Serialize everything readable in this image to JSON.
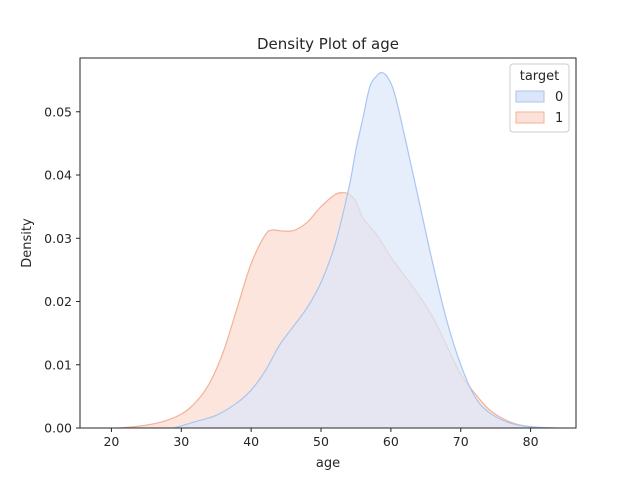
{
  "chart_data": {
    "type": "area",
    "title": "Density Plot of age",
    "xlabel": "age",
    "ylabel": "Density",
    "xlim": [
      15.5,
      86.5
    ],
    "ylim": [
      0,
      0.0585
    ],
    "xticks": [
      20,
      30,
      40,
      50,
      60,
      70,
      80
    ],
    "yticks": [
      0.0,
      0.01,
      0.02,
      0.03,
      0.04,
      0.05
    ],
    "ytick_labels": [
      "0.00",
      "0.01",
      "0.02",
      "0.03",
      "0.04",
      "0.05"
    ],
    "grid": false,
    "legend": {
      "title": "target",
      "placement": "top-right"
    },
    "series": [
      {
        "name": "0",
        "color": "#a8c6f0",
        "fill": "#dbe7f9",
        "x": [
          29,
          32,
          35,
          38,
          40,
          42,
          44,
          46,
          48,
          50,
          52,
          54,
          55,
          56,
          57,
          58,
          58.7,
          59.5,
          60.5,
          62,
          64,
          66,
          68,
          70,
          72,
          74,
          77,
          80,
          84
        ],
        "y": [
          0.0,
          0.001,
          0.002,
          0.004,
          0.006,
          0.009,
          0.013,
          0.016,
          0.019,
          0.023,
          0.029,
          0.038,
          0.044,
          0.049,
          0.054,
          0.0557,
          0.0562,
          0.0555,
          0.053,
          0.046,
          0.036,
          0.026,
          0.017,
          0.01,
          0.005,
          0.0025,
          0.0008,
          0.0002,
          0.0
        ]
      },
      {
        "name": "1",
        "color": "#f4b196",
        "fill": "#fbe2d8",
        "x": [
          21,
          24,
          27,
          30,
          32,
          34,
          36,
          38,
          40,
          42,
          43,
          44,
          46,
          48,
          50,
          52,
          53,
          54,
          55,
          56,
          58,
          60,
          62,
          64,
          66,
          68,
          70,
          72,
          74,
          76,
          78,
          80,
          82
        ],
        "y": [
          0.0,
          0.0003,
          0.0009,
          0.0022,
          0.004,
          0.007,
          0.012,
          0.019,
          0.026,
          0.0305,
          0.0313,
          0.0312,
          0.0312,
          0.0325,
          0.035,
          0.0369,
          0.0372,
          0.037,
          0.0358,
          0.0332,
          0.0305,
          0.027,
          0.024,
          0.021,
          0.0175,
          0.013,
          0.0085,
          0.0055,
          0.003,
          0.0015,
          0.0006,
          0.0002,
          0.0
        ]
      }
    ]
  }
}
